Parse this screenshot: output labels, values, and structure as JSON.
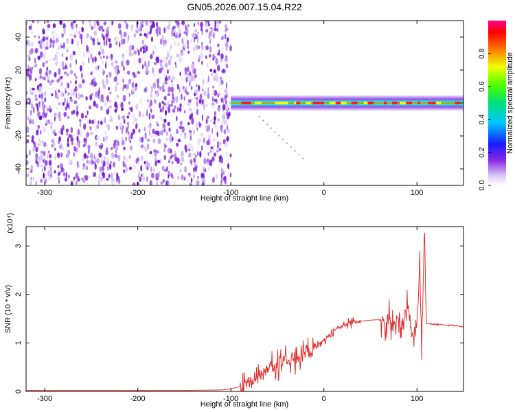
{
  "figure": {
    "title": "GN05.2026.007.15.04.R22"
  },
  "chart_data": [
    {
      "type": "heatmap",
      "title": "GN05.2026.007.15.04.R22",
      "xlabel": "Height of straight line (km)",
      "ylabel": "Frequency (Hz)",
      "xlim": [
        -320,
        150
      ],
      "ylim": [
        -50,
        50
      ],
      "xticks": [
        -300,
        -200,
        -100,
        0,
        100
      ],
      "yticks": [
        -40,
        -20,
        0,
        20,
        40
      ],
      "xtick_labels": [
        "-300",
        "-200",
        "-100",
        "0",
        "100"
      ],
      "ytick_labels": [
        "-40",
        "-20",
        "0",
        "20",
        "40"
      ],
      "colorbar": {
        "label": "Normalized spectral amplitude",
        "range": [
          0.0,
          1.0
        ],
        "ticks": [
          0.0,
          0.2,
          0.4,
          0.6,
          0.8
        ],
        "tick_labels": [
          "0.0",
          "0.2",
          "0.4",
          "0.6",
          "0.8"
        ],
        "colormap": "rainbow (white-violet-blue-cyan-green-yellow-red-magenta)"
      },
      "description_regions": {
        "noise_region_x": [
          -320,
          -100
        ],
        "signal_band_x": [
          -100,
          150
        ],
        "signal_band_frequency_hz": 0
      }
    },
    {
      "type": "line",
      "xlabel": "Height of straight line (km)",
      "ylabel": "SNR (10 * v/v)",
      "y_scale_label": "(x10⁴)",
      "xlim": [
        -320,
        150
      ],
      "ylim": [
        0,
        3.4
      ],
      "xticks": [
        -300,
        -200,
        -100,
        0,
        100
      ],
      "yticks": [
        0,
        1,
        2,
        3
      ],
      "xtick_labels": [
        "-300",
        "-200",
        "-100",
        "0",
        "100"
      ],
      "ytick_labels": [
        "0",
        "1",
        "2",
        "3"
      ],
      "series": [
        {
          "color": "#e03030",
          "x": [
            -320,
            -150,
            -110,
            -100,
            -90,
            -80,
            -70,
            -60,
            -50,
            -40,
            -30,
            -20,
            -10,
            0,
            10,
            20,
            30,
            40,
            50,
            60,
            65,
            70,
            75,
            80,
            85,
            90,
            95,
            100,
            103,
            105,
            108,
            110,
            120,
            130,
            140,
            150
          ],
          "y": [
            0.02,
            0.02,
            0.03,
            0.05,
            0.1,
            0.18,
            0.3,
            0.45,
            0.55,
            0.65,
            0.7,
            0.75,
            0.9,
            1.05,
            1.25,
            1.35,
            1.42,
            1.45,
            1.47,
            1.48,
            1.45,
            1.5,
            1.3,
            1.6,
            1.4,
            1.8,
            1.2,
            1.4,
            2.6,
            1.0,
            3.4,
            1.4,
            1.38,
            1.37,
            1.36,
            1.33
          ]
        }
      ]
    }
  ]
}
